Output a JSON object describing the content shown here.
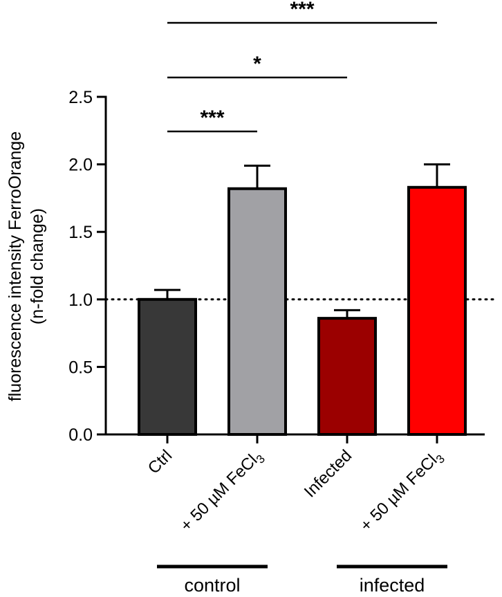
{
  "chart_data": {
    "type": "bar",
    "ylabel_line1": "fluorescence intensity FerroOrange",
    "ylabel_line2": "(n-fold change)",
    "ylim": [
      0,
      2.5
    ],
    "yticks": [
      "0.0",
      "0.5",
      "1.0",
      "1.5",
      "2.0",
      "2.5"
    ],
    "ytick_values": [
      0,
      0.5,
      1.0,
      1.5,
      2.0,
      2.5
    ],
    "categories": [
      "Ctrl",
      "+ 50 µM FeCl3",
      "Infected",
      "+ 50 µM FeCl3"
    ],
    "category_subscripts": [
      "",
      "3",
      "",
      "3"
    ],
    "category_main": [
      "Ctrl",
      "+ 50 µM FeCl",
      "Infected",
      "+ 50 µM FeCl"
    ],
    "values": [
      1.0,
      1.82,
      0.86,
      1.83
    ],
    "error_upper": [
      0.07,
      0.17,
      0.06,
      0.17
    ],
    "colors": [
      "#383838",
      "#a1a1a5",
      "#9b0000",
      "#ff0000"
    ],
    "reference_line": 1.0,
    "groups": [
      {
        "label": "control",
        "categories": [
          0,
          1
        ]
      },
      {
        "label": "infected",
        "categories": [
          2,
          3
        ]
      }
    ],
    "significance": [
      {
        "from": 0,
        "to": 1,
        "label": "***"
      },
      {
        "from": 0,
        "to": 2,
        "label": "*"
      },
      {
        "from": 0,
        "to": 3,
        "label": "***"
      }
    ]
  }
}
